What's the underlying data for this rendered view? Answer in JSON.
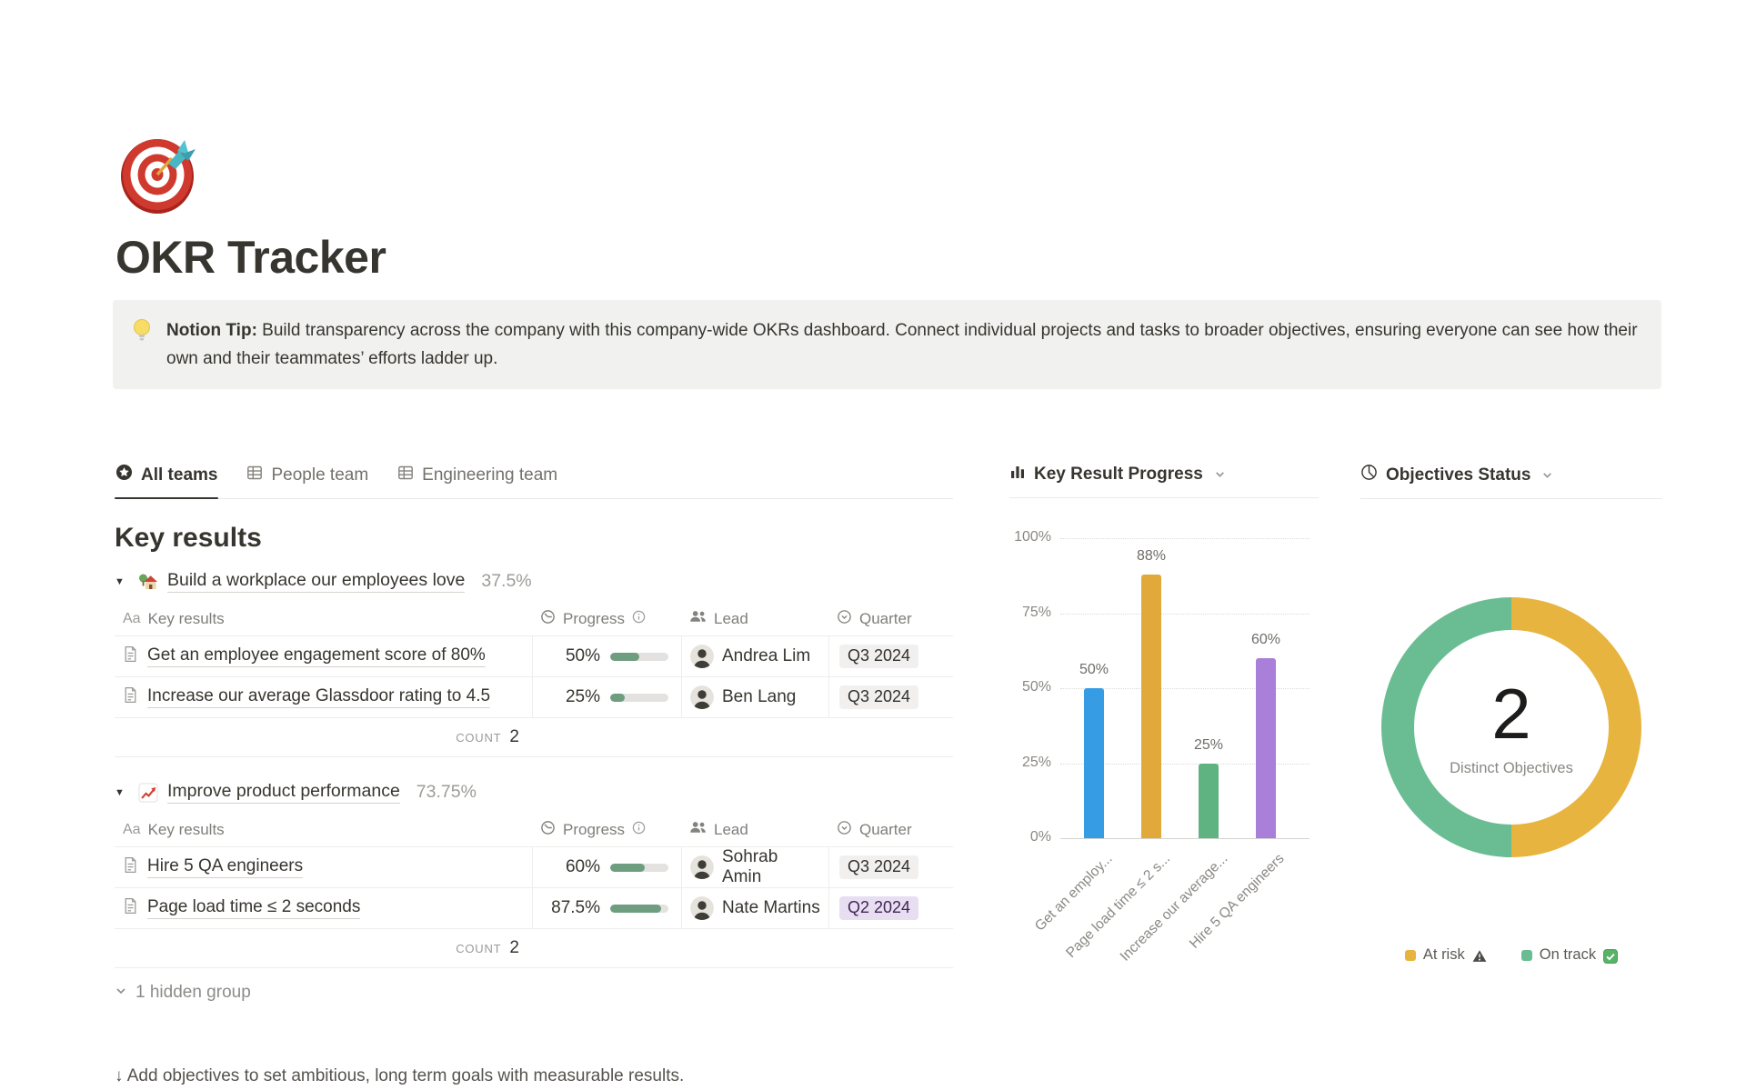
{
  "page": {
    "icon": "dart-target-emoji",
    "title": "OKR Tracker"
  },
  "callout": {
    "icon": "light-bulb-emoji",
    "bold": "Notion Tip:",
    "text": " Build transparency across the company with this company-wide OKRs dashboard. Connect individual projects and tasks to broader objectives, ensuring everyone can see how their own and their teammates’ efforts ladder up."
  },
  "tabs": [
    {
      "label": "All teams",
      "icon": "star-circle-icon",
      "active": true
    },
    {
      "label": "People team",
      "icon": "table-icon",
      "active": false
    },
    {
      "label": "Engineering team",
      "icon": "table-icon",
      "active": false
    }
  ],
  "table": {
    "section_title": "Key results",
    "name_prefix": "Aa",
    "columns": {
      "name": "Key results",
      "progress": "Progress",
      "lead": "Lead",
      "quarter": "Quarter"
    },
    "count_label": "COUNT",
    "groups": [
      {
        "icon": "house-with-garden-emoji",
        "title": "Build a workplace our employees love",
        "percent": "37.5%",
        "count": "2",
        "rows": [
          {
            "name": "Get an employee engagement score of 80%",
            "progress": "50%",
            "progress_value": 50,
            "lead": "Andrea Lim",
            "quarter": "Q3 2024",
            "quarter_color": "gray"
          },
          {
            "name": "Increase our average Glassdoor rating to 4.5",
            "progress": "25%",
            "progress_value": 25,
            "lead": "Ben Lang",
            "quarter": "Q3 2024",
            "quarter_color": "gray"
          }
        ]
      },
      {
        "icon": "chart-increasing-emoji",
        "title": "Improve product performance",
        "percent": "73.75%",
        "count": "2",
        "rows": [
          {
            "name": "Hire 5 QA engineers",
            "progress": "60%",
            "progress_value": 60,
            "lead": "Sohrab Amin",
            "quarter": "Q3 2024",
            "quarter_color": "gray"
          },
          {
            "name": "Page load time ≤ 2 seconds",
            "progress": "87.5%",
            "progress_value": 87.5,
            "lead": "Nate Martins",
            "quarter": "Q2 2024",
            "quarter_color": "purple"
          }
        ]
      }
    ],
    "hidden_group_label": "1 hidden group"
  },
  "footer": {
    "text": "↓ Add objectives to set ambitious, long term goals with measurable results."
  },
  "colors": {
    "progress_fill": "#6f9d7f",
    "progress_track": "#e3e2e0",
    "badge_gray_bg": "#f1f0ef",
    "badge_purple_bg": "#e8def2",
    "callout_bg": "#f1f1ef"
  },
  "chart_data": [
    {
      "type": "bar",
      "title": "Key Result Progress",
      "categories": [
        "Get an employ...",
        "Page load time ≤ 2 s...",
        "Increase our average...",
        "Hire 5 QA engineers"
      ],
      "values": [
        50,
        88,
        25,
        60
      ],
      "value_labels": [
        "50%",
        "88%",
        "25%",
        "60%"
      ],
      "colors": [
        "#369de5",
        "#e0a93a",
        "#5fb381",
        "#a97fd9"
      ],
      "yticks": [
        {
          "value": 0,
          "label": "0%"
        },
        {
          "value": 25,
          "label": "25%"
        },
        {
          "value": 50,
          "label": "50%"
        },
        {
          "value": 75,
          "label": "75%"
        },
        {
          "value": 100,
          "label": "100%"
        }
      ],
      "ylim": [
        0,
        100
      ],
      "grid": "dotted-horizontal",
      "xlabel": "",
      "ylabel": ""
    },
    {
      "type": "pie",
      "donut": true,
      "title": "Objectives Status",
      "center_value": "2",
      "center_label": "Distinct Objectives",
      "slices": [
        {
          "label": "At risk",
          "value": 1,
          "color": "#e8b440",
          "status_icon": "warning-icon"
        },
        {
          "label": "On track",
          "value": 1,
          "color": "#6abd92",
          "status_icon": "check-icon"
        }
      ],
      "legend_position": "bottom"
    }
  ]
}
